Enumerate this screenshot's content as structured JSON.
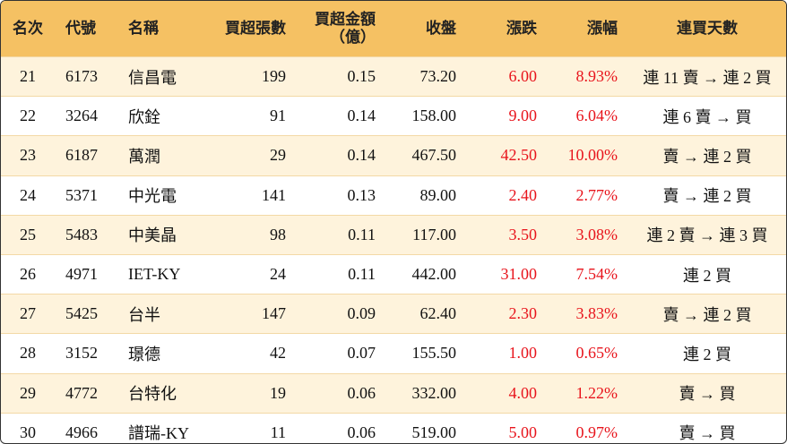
{
  "table": {
    "header": [
      "名次",
      "代號",
      "名稱",
      "買超張數",
      "買超金額\n（億）",
      "收盤",
      "漲跌",
      "漲幅",
      "連買天數"
    ],
    "rows": [
      [
        "21",
        "6173",
        "信昌電",
        "199",
        "0.15",
        "73.20",
        "6.00",
        "8.93%",
        "連 11 賣 → 連 2 買"
      ],
      [
        "22",
        "3264",
        "欣銓",
        "91",
        "0.14",
        "158.00",
        "9.00",
        "6.04%",
        "連 6 賣 → 買"
      ],
      [
        "23",
        "6187",
        "萬潤",
        "29",
        "0.14",
        "467.50",
        "42.50",
        "10.00%",
        "賣 → 連 2 買"
      ],
      [
        "24",
        "5371",
        "中光電",
        "141",
        "0.13",
        "89.00",
        "2.40",
        "2.77%",
        "賣 → 連 2 買"
      ],
      [
        "25",
        "5483",
        "中美晶",
        "98",
        "0.11",
        "117.00",
        "3.50",
        "3.08%",
        "連 2 賣 → 連 3 買"
      ],
      [
        "26",
        "4971",
        "IET-KY",
        "24",
        "0.11",
        "442.00",
        "31.00",
        "7.54%",
        "連 2 買"
      ],
      [
        "27",
        "5425",
        "台半",
        "147",
        "0.09",
        "62.40",
        "2.30",
        "3.83%",
        "賣 → 連 2 買"
      ],
      [
        "28",
        "3152",
        "璟德",
        "42",
        "0.07",
        "155.50",
        "1.00",
        "0.65%",
        "連 2 買"
      ],
      [
        "29",
        "4772",
        "台特化",
        "19",
        "0.06",
        "332.00",
        "4.00",
        "1.22%",
        "賣 → 買"
      ],
      [
        "30",
        "4966",
        "譜瑞-KY",
        "11",
        "0.06",
        "519.00",
        "5.00",
        "0.97%",
        "賣 → 買"
      ]
    ]
  }
}
